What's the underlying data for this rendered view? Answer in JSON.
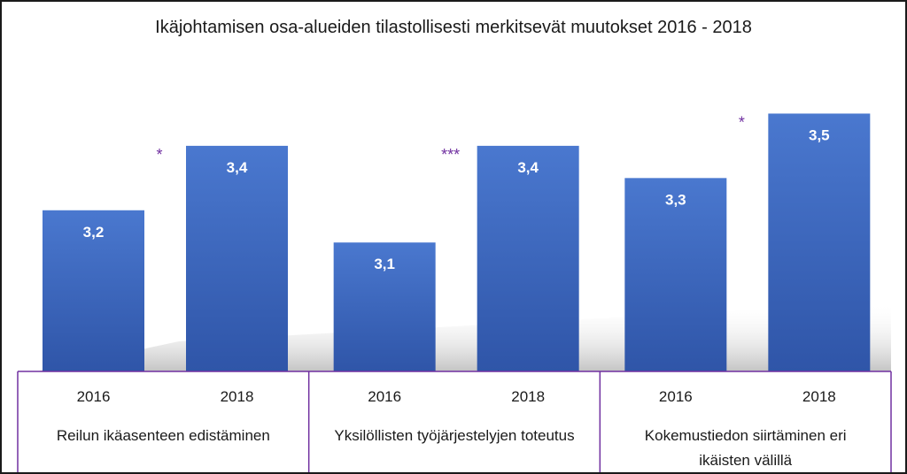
{
  "chart_data": {
    "type": "bar",
    "title": "Ikäjohtamisen osa-alueiden tilastollisesti merkitsevät muutokset 2016 - 2018",
    "xlabel": "",
    "ylabel": "",
    "groups": [
      {
        "label_lines": [
          "Reilun ikäasenteen edistäminen"
        ],
        "significance": "*",
        "bars": [
          {
            "year": "2016",
            "value": 3.2,
            "value_label": "3,2"
          },
          {
            "year": "2018",
            "value": 3.4,
            "value_label": "3,4"
          }
        ]
      },
      {
        "label_lines": [
          "Yksilöllisten työjärjestelyjen toteutus"
        ],
        "significance": "***",
        "bars": [
          {
            "year": "2016",
            "value": 3.1,
            "value_label": "3,1"
          },
          {
            "year": "2018",
            "value": 3.4,
            "value_label": "3,4"
          }
        ]
      },
      {
        "label_lines": [
          "Kokemustiedon siirtäminen eri",
          "ikäisten välillä"
        ],
        "significance": "*",
        "bars": [
          {
            "year": "2016",
            "value": 3.3,
            "value_label": "3,3"
          },
          {
            "year": "2018",
            "value": 3.5,
            "value_label": "3,5"
          }
        ]
      }
    ],
    "ylim": [
      2.7,
      3.6
    ],
    "grid": false,
    "legend": "none",
    "colors": {
      "bar_top": "#4a78cf",
      "bar_bottom": "#2f55a8",
      "axis_lines": "#7030a0",
      "significance": "#7030a0",
      "shadow": "#bdbdbd"
    }
  }
}
